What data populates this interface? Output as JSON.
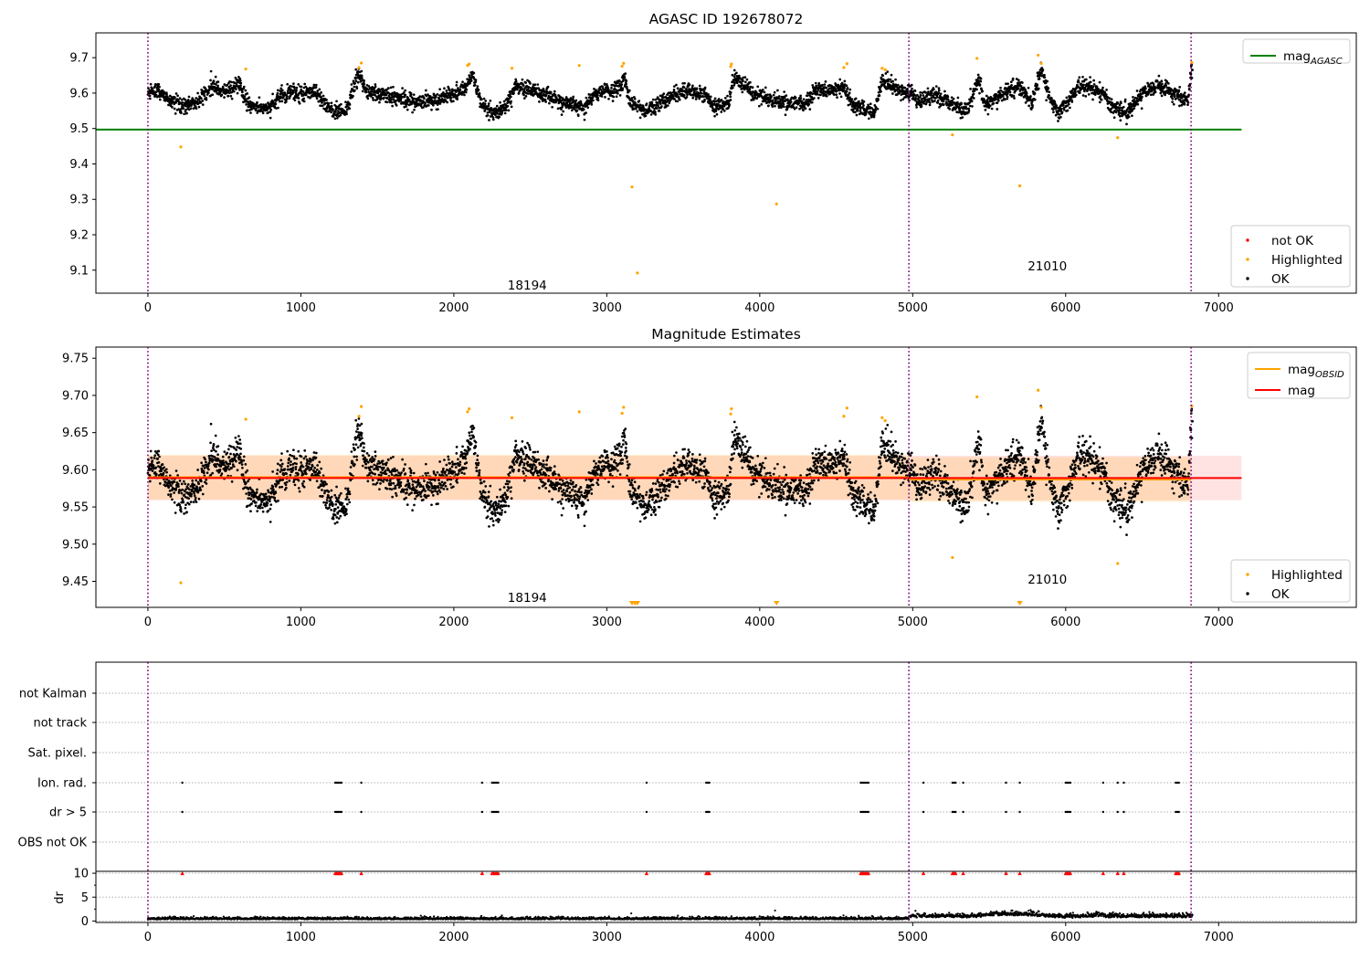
{
  "chart_data": [
    {
      "type": "scatter",
      "title": "AGASC ID 192678072",
      "xlim": [
        -340,
        7900
      ],
      "ylim": [
        9.035,
        9.77
      ],
      "xticks": [
        0,
        1000,
        2000,
        3000,
        4000,
        5000,
        6000,
        7000
      ],
      "yticks": [
        9.1,
        9.2,
        9.3,
        9.4,
        9.5,
        9.6,
        9.7
      ],
      "ytick_labels": [
        "9.1",
        "9.2",
        "9.3",
        "9.4",
        "9.5",
        "9.6",
        "9.7"
      ],
      "obs_boundaries": [
        0,
        4975,
        6820
      ],
      "obs_annotations": [
        {
          "label": "18194",
          "x": 2480,
          "y": 9.055
        },
        {
          "label": "21010",
          "x": 5880,
          "y": 9.11
        }
      ],
      "mag_agasc": 9.497,
      "mag_line_x": [
        0,
        7150
      ],
      "line_legend": [
        {
          "label": "mag",
          "subscript": "AGASC",
          "color": "#008000"
        }
      ],
      "point_legend": [
        {
          "label": "not OK",
          "color": "#ff0000"
        },
        {
          "label": "Highlighted",
          "color": "#ffa500"
        },
        {
          "label": "OK",
          "color": "#000000"
        }
      ],
      "series": [
        {
          "name": "OK",
          "color": "#000000",
          "points": "ok_mag"
        },
        {
          "name": "Highlighted",
          "color": "#ffa500",
          "points": [
            [
              215,
              9.448
            ],
            [
              640,
              9.668
            ],
            [
              1380,
              9.672
            ],
            [
              1395,
              9.685
            ],
            [
              2090,
              9.678
            ],
            [
              2100,
              9.682
            ],
            [
              2380,
              9.67
            ],
            [
              2820,
              9.678
            ],
            [
              3100,
              9.676
            ],
            [
              3110,
              9.684
            ],
            [
              3165,
              9.335
            ],
            [
              3200,
              9.092
            ],
            [
              3810,
              9.675
            ],
            [
              3815,
              9.682
            ],
            [
              4110,
              9.287
            ],
            [
              4550,
              9.672
            ],
            [
              4570,
              9.683
            ],
            [
              4800,
              9.67
            ],
            [
              4820,
              9.666
            ],
            [
              5260,
              9.482
            ],
            [
              5420,
              9.698
            ],
            [
              5700,
              9.338
            ],
            [
              5820,
              9.707
            ],
            [
              5840,
              9.684
            ],
            [
              6340,
              9.474
            ],
            [
              6825,
              9.686
            ]
          ]
        },
        {
          "name": "not OK",
          "color": "#ff0000",
          "points": []
        }
      ]
    },
    {
      "type": "scatter",
      "title": "Magnitude Estimates",
      "xlim": [
        -340,
        7900
      ],
      "ylim": [
        9.415,
        9.765
      ],
      "xticks": [
        0,
        1000,
        2000,
        3000,
        4000,
        5000,
        6000,
        7000
      ],
      "yticks": [
        9.45,
        9.5,
        9.55,
        9.6,
        9.65,
        9.7,
        9.75
      ],
      "ytick_labels": [
        "9.45",
        "9.50",
        "9.55",
        "9.60",
        "9.65",
        "9.70",
        "9.75"
      ],
      "obs_boundaries": [
        0,
        4975,
        6820
      ],
      "obs_annotations": [
        {
          "label": "18194",
          "x": 2480,
          "y": 9.427
        },
        {
          "label": "21010",
          "x": 5880,
          "y": 9.452
        }
      ],
      "mag": 9.589,
      "mag_band": [
        9.559,
        9.619
      ],
      "mag_band_x": [
        0,
        7150
      ],
      "mag_obsid": [
        {
          "x": [
            0,
            4975
          ],
          "mean": 9.59,
          "band": [
            9.56,
            9.62
          ]
        },
        {
          "x": [
            4975,
            6820
          ],
          "mean": 9.587,
          "band": [
            9.557,
            9.617
          ]
        }
      ],
      "line_legend": [
        {
          "label": "mag",
          "subscript": "OBSID",
          "color": "#ffa500"
        },
        {
          "label": "mag",
          "subscript": "",
          "color": "#ff0000"
        }
      ],
      "point_legend": [
        {
          "label": "Highlighted",
          "color": "#ffa500"
        },
        {
          "label": "OK",
          "color": "#000000"
        }
      ],
      "series": [
        {
          "name": "OK",
          "color": "#000000",
          "points": "ok_mag"
        },
        {
          "name": "Highlighted",
          "color": "#ffa500",
          "points": [
            [
              215,
              9.448
            ],
            [
              640,
              9.668
            ],
            [
              1380,
              9.672
            ],
            [
              1395,
              9.685
            ],
            [
              2090,
              9.678
            ],
            [
              2100,
              9.682
            ],
            [
              2380,
              9.67
            ],
            [
              2820,
              9.678
            ],
            [
              3100,
              9.676
            ],
            [
              3110,
              9.684
            ],
            [
              3810,
              9.675
            ],
            [
              3815,
              9.682
            ],
            [
              4550,
              9.672
            ],
            [
              4570,
              9.683
            ],
            [
              4800,
              9.67
            ],
            [
              4820,
              9.666
            ],
            [
              5260,
              9.482
            ],
            [
              5420,
              9.698
            ],
            [
              5820,
              9.707
            ],
            [
              5840,
              9.684
            ],
            [
              6340,
              9.474
            ],
            [
              6825,
              9.686
            ]
          ]
        }
      ],
      "below_range_markers": [
        3165,
        3185,
        3200,
        4110,
        5700
      ]
    },
    {
      "type": "scatter",
      "title": "",
      "xlim": [
        -340,
        7900
      ],
      "xticks": [
        0,
        1000,
        2000,
        3000,
        4000,
        5000,
        6000,
        7000
      ],
      "obs_boundaries": [
        0,
        4975,
        6820
      ],
      "flag_rows": [
        "not Kalman",
        "not track",
        "Sat. pixel.",
        "Ion. rad.",
        "dr > 5",
        "OBS not OK"
      ],
      "flag_events": {
        "Ion. rad.": [
          225,
          1225,
          1235,
          1245,
          1255,
          1265,
          1395,
          2185,
          2250,
          2260,
          2270,
          2280,
          2290,
          3260,
          3650,
          3660,
          3670,
          4660,
          4670,
          4680,
          4690,
          4700,
          4710,
          5070,
          5260,
          5270,
          5280,
          5330,
          5610,
          5700,
          6000,
          6010,
          6020,
          6030,
          6245,
          6340,
          6380,
          6720,
          6730,
          6740
        ],
        "dr > 5": [
          225,
          1225,
          1235,
          1245,
          1255,
          1265,
          1395,
          2185,
          2250,
          2260,
          2270,
          2280,
          2290,
          3260,
          3650,
          3660,
          3670,
          4660,
          4670,
          4680,
          4690,
          4700,
          4710,
          5070,
          5260,
          5270,
          5280,
          5330,
          5610,
          5700,
          6000,
          6010,
          6020,
          6030,
          6245,
          6340,
          6380,
          6720,
          6730,
          6740
        ]
      },
      "dr_ylabel": "dr",
      "dr_yticks": [
        0,
        5,
        10
      ],
      "dr_ytick_labels": [
        "0",
        "5",
        "10"
      ],
      "dr_ylim": [
        -0.3,
        10.4
      ],
      "dr_clipped_value": 10,
      "dr_outliers": [
        [
          3160,
          1.6
        ],
        [
          4100,
          2.2
        ],
        [
          6200,
          1.9
        ]
      ]
    }
  ]
}
